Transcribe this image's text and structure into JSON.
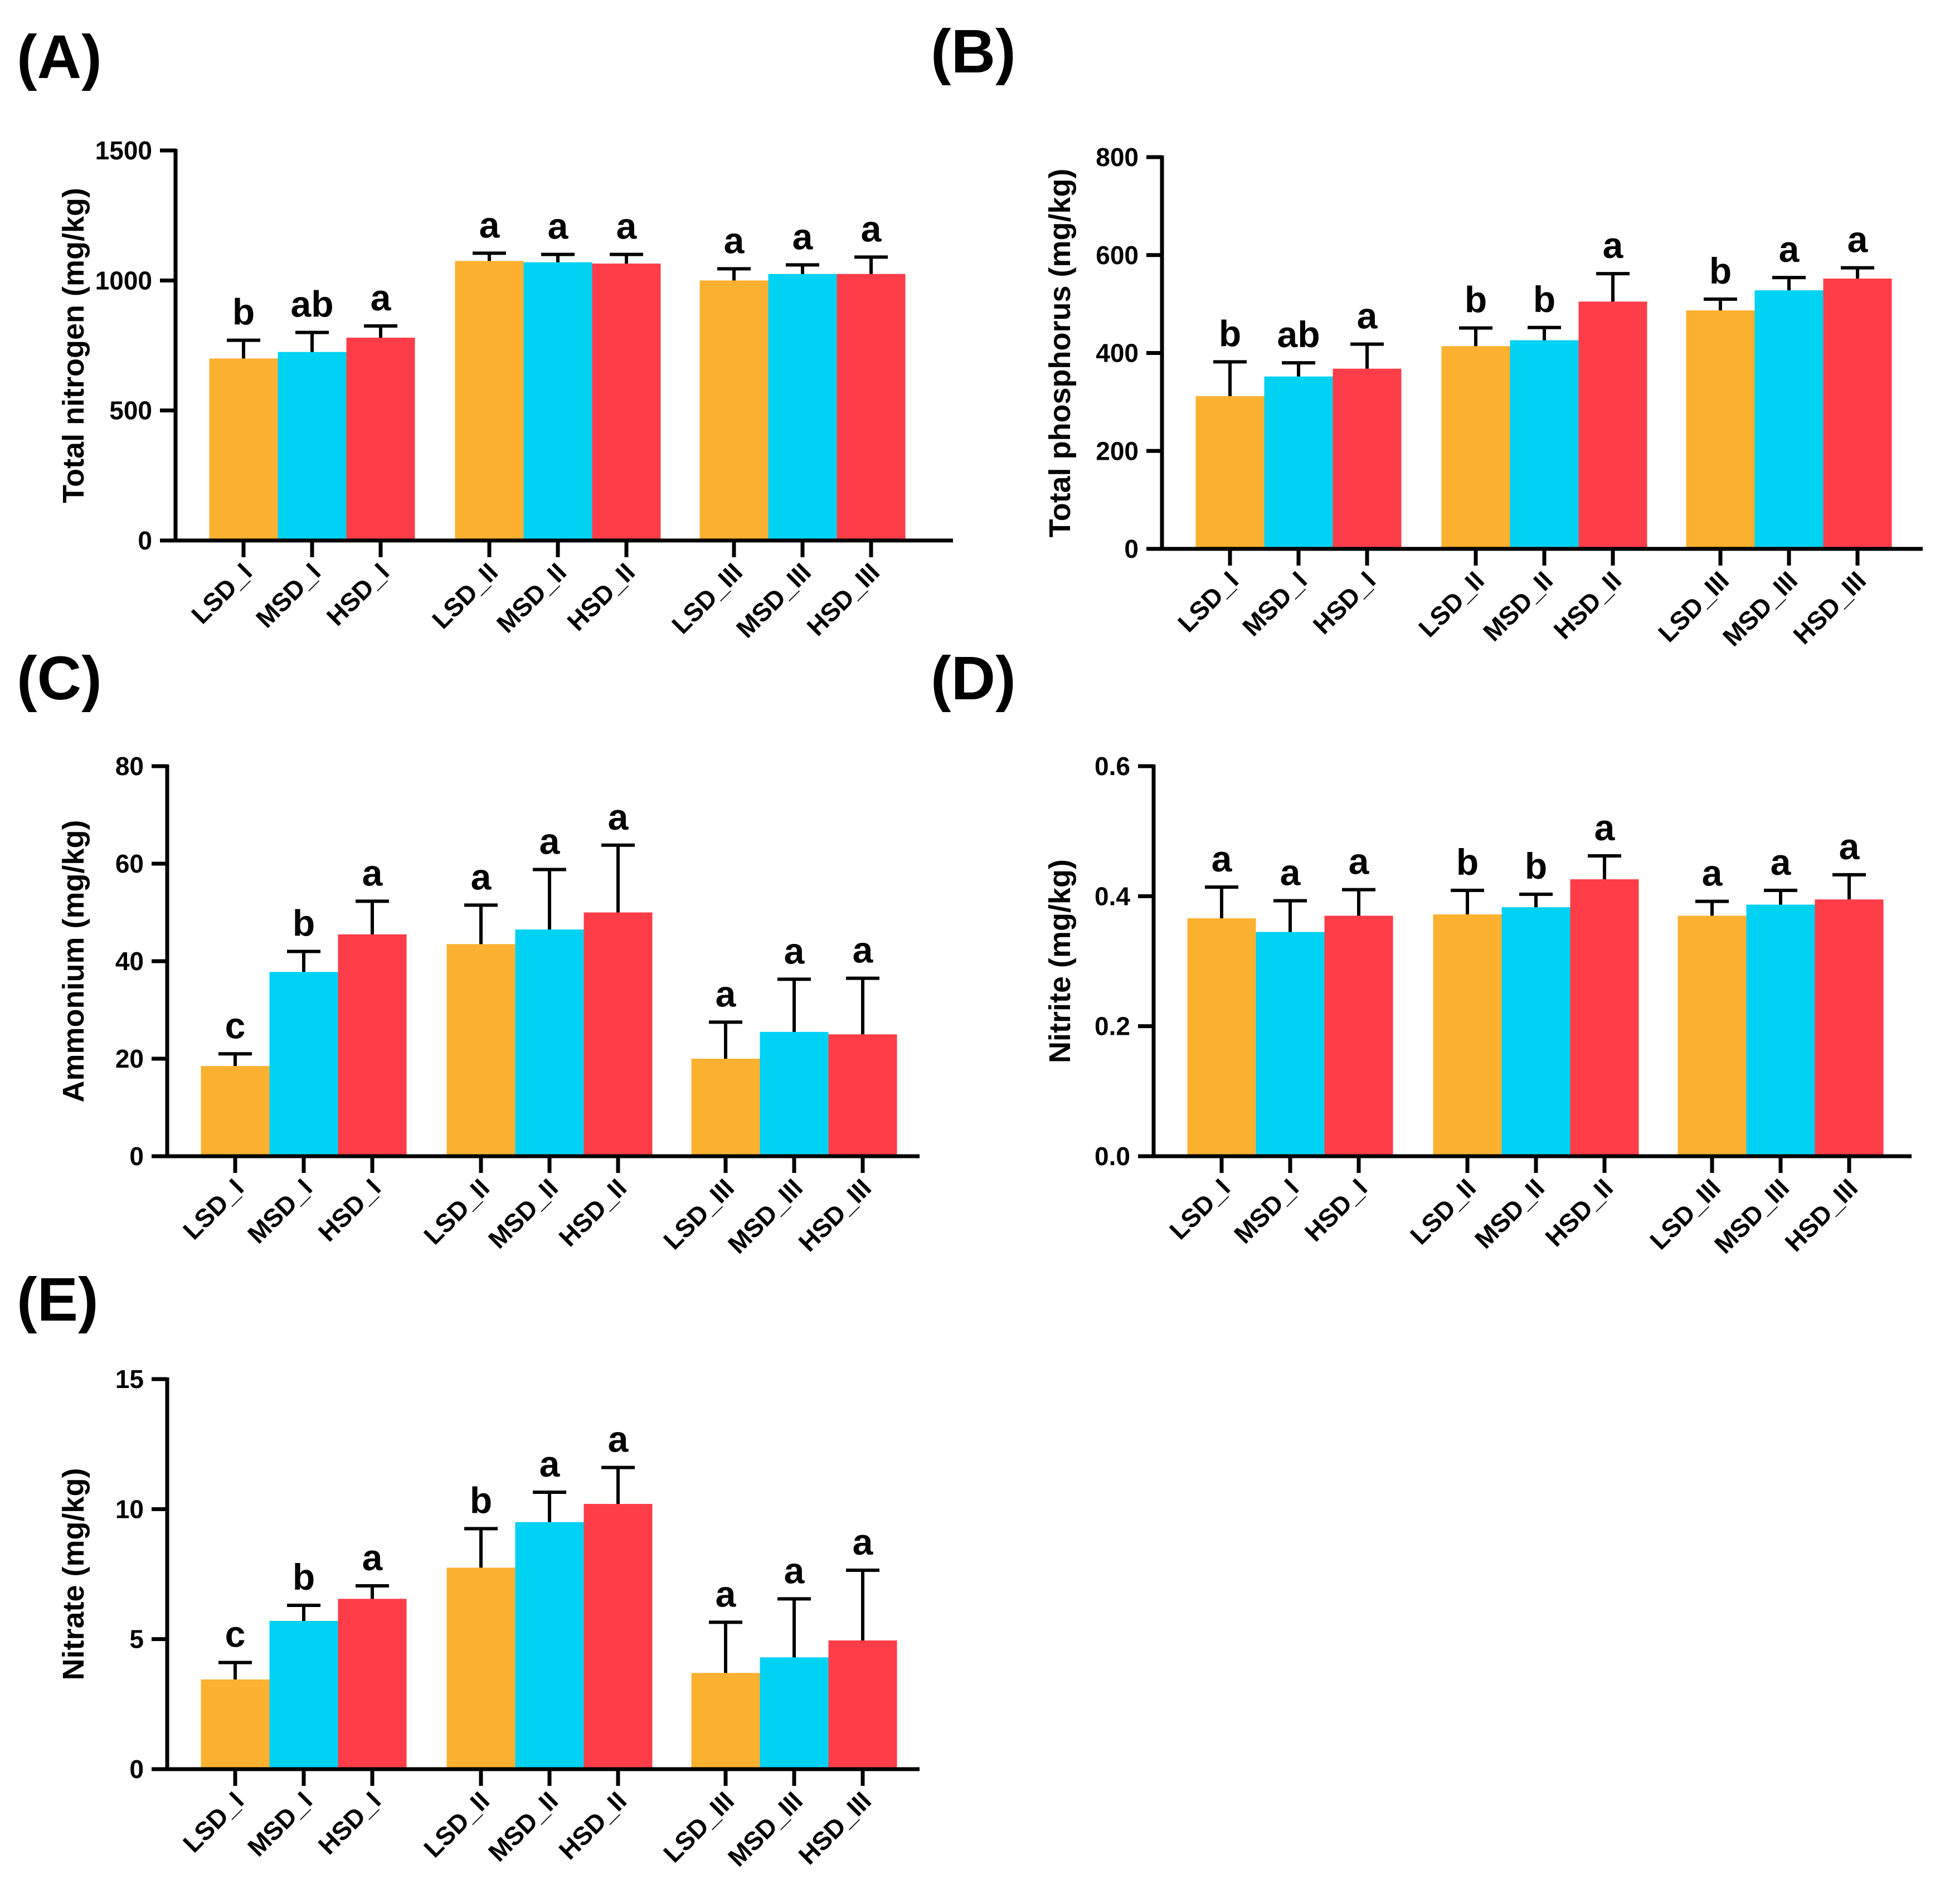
{
  "colors": {
    "LSD": "#FCB131",
    "MSD": "#00D2F4",
    "HSD": "#FF3D48"
  },
  "chart_data": [
    {
      "panel": "(A)",
      "type": "bar",
      "ylabel": "Total nitrogen (mg/kg)",
      "ylim": [
        0,
        1500
      ],
      "yticks": [
        0,
        500,
        1000,
        1500
      ],
      "ytick_labels": [
        "0",
        "500",
        "1000",
        "1500"
      ],
      "categories": [
        "LSD_I",
        "MSD_I",
        "HSD_I",
        "LSD_II",
        "MSD_II",
        "HSD_II",
        "LSD_III",
        "MSD_III",
        "HSD_III"
      ],
      "values": [
        700,
        725,
        780,
        1075,
        1070,
        1065,
        1000,
        1025,
        1025
      ],
      "errors": [
        70,
        75,
        45,
        30,
        30,
        35,
        45,
        35,
        65
      ],
      "letters": [
        "b",
        "ab",
        "a",
        "a",
        "a",
        "a",
        "a",
        "a",
        "a"
      ]
    },
    {
      "panel": "(B)",
      "type": "bar",
      "ylabel": "Total phosphorus (mg/kg)",
      "ylim": [
        0,
        800
      ],
      "yticks": [
        0,
        200,
        400,
        600,
        800
      ],
      "ytick_labels": [
        "0",
        "200",
        "400",
        "600",
        "800"
      ],
      "categories": [
        "LSD_I",
        "MSD_I",
        "HSD_I",
        "LSD_II",
        "MSD_II",
        "HSD_II",
        "LSD_III",
        "MSD_III",
        "HSD_III"
      ],
      "values": [
        312,
        352,
        368,
        414,
        426,
        505,
        487,
        528,
        552
      ],
      "errors": [
        70,
        28,
        50,
        37,
        26,
        57,
        23,
        26,
        22
      ],
      "letters": [
        "b",
        "ab",
        "a",
        "b",
        "b",
        "a",
        "b",
        "a",
        "a"
      ]
    },
    {
      "panel": "(C)",
      "type": "bar",
      "ylabel": "Ammonium (mg/kg)",
      "ylim": [
        0,
        80
      ],
      "yticks": [
        0,
        20,
        40,
        60,
        80
      ],
      "ytick_labels": [
        "0",
        "20",
        "40",
        "60",
        "80"
      ],
      "categories": [
        "LSD_I",
        "MSD_I",
        "HSD_I",
        "LSD_II",
        "MSD_II",
        "HSD_II",
        "LSD_III",
        "MSD_III",
        "HSD_III"
      ],
      "values": [
        18.5,
        37.8,
        45.5,
        43.5,
        46.5,
        50,
        20,
        25.5,
        25
      ],
      "errors": [
        2.5,
        4.2,
        6.8,
        8,
        12.3,
        13.8,
        7.5,
        10.8,
        11.5
      ],
      "letters": [
        "c",
        "b",
        "a",
        "a",
        "a",
        "a",
        "a",
        "a",
        "a"
      ]
    },
    {
      "panel": "(D)",
      "type": "bar",
      "ylabel": "Nitrite (mg/kg)",
      "ylim": [
        0,
        0.6
      ],
      "yticks": [
        0,
        0.2,
        0.4,
        0.6
      ],
      "ytick_labels": [
        "0.0",
        "0.2",
        "0.4",
        "0.6"
      ],
      "categories": [
        "LSD_I",
        "MSD_I",
        "HSD_I",
        "LSD_II",
        "MSD_II",
        "HSD_II",
        "LSD_III",
        "MSD_III",
        "HSD_III"
      ],
      "values": [
        0.366,
        0.345,
        0.37,
        0.372,
        0.383,
        0.426,
        0.37,
        0.387,
        0.395
      ],
      "errors": [
        0.048,
        0.048,
        0.04,
        0.037,
        0.02,
        0.036,
        0.022,
        0.022,
        0.038
      ],
      "letters": [
        "a",
        "a",
        "a",
        "b",
        "b",
        "a",
        "a",
        "a",
        "a"
      ]
    },
    {
      "panel": "(E)",
      "type": "bar",
      "ylabel": "Nitrate (mg/kg)",
      "ylim": [
        0,
        15
      ],
      "yticks": [
        0,
        5,
        10,
        15
      ],
      "ytick_labels": [
        "0",
        "5",
        "10",
        "15"
      ],
      "categories": [
        "LSD_I",
        "MSD_I",
        "HSD_I",
        "LSD_II",
        "MSD_II",
        "HSD_II",
        "LSD_III",
        "MSD_III",
        "HSD_III"
      ],
      "values": [
        3.45,
        5.7,
        6.55,
        7.75,
        9.5,
        10.2,
        3.7,
        4.3,
        4.95
      ],
      "errors": [
        0.65,
        0.6,
        0.5,
        1.5,
        1.15,
        1.4,
        1.95,
        2.25,
        2.7
      ],
      "letters": [
        "c",
        "b",
        "a",
        "b",
        "a",
        "a",
        "a",
        "a",
        "a"
      ]
    }
  ]
}
